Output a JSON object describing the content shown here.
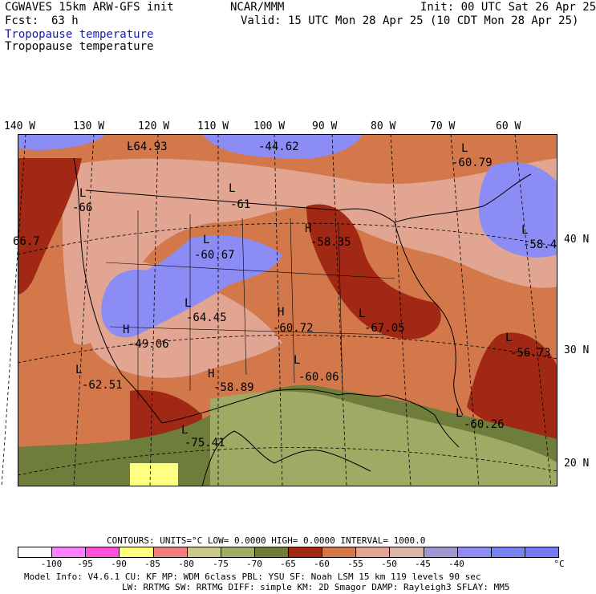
{
  "header": {
    "model": "CGWAVES 15km ARW-GFS init",
    "center": "NCAR/MMM",
    "init": "Init: 00 UTC Sat 26 Apr 25",
    "fcst_label": "Fcst:",
    "fcst_value": "63 h",
    "valid": "Valid: 15 UTC Mon 28 Apr 25 (10 CDT Mon 28 Apr 25)",
    "field_blue": "Tropopause temperature",
    "field_black": "Tropopause temperature"
  },
  "longitudes": [
    "140 W",
    "130 W",
    "120 W",
    "110 W",
    "100 W",
    "90 W",
    "80 W",
    "70 W",
    "60 W"
  ],
  "latitudes": [
    "40 N",
    "30 N",
    "20 N"
  ],
  "map_labels": [
    {
      "letter": "L",
      "value": "-64.93"
    },
    {
      "letter": "",
      "value": "-44.62"
    },
    {
      "letter": "L",
      "value": "-60.79"
    },
    {
      "letter": "L",
      "value": "-66"
    },
    {
      "letter": "L",
      "value": "-61"
    },
    {
      "letter": "",
      "value": "66.7"
    },
    {
      "letter": "L",
      "value": "-60.67"
    },
    {
      "letter": "H",
      "value": "-58.35"
    },
    {
      "letter": "L",
      "value": "-58.4"
    },
    {
      "letter": "L",
      "value": "-64.45"
    },
    {
      "letter": "H",
      "value": "-60.72"
    },
    {
      "letter": "L",
      "value": "-67.05"
    },
    {
      "letter": "H",
      "value": "-49.06"
    },
    {
      "letter": "L",
      "value": "-56.73"
    },
    {
      "letter": "L",
      "value": "-62.51"
    },
    {
      "letter": "H",
      "value": "-58.89"
    },
    {
      "letter": "L",
      "value": "-60.06"
    },
    {
      "letter": "L",
      "value": "-60.26"
    },
    {
      "letter": "L",
      "value": "-75.41"
    }
  ],
  "contours": {
    "text": "CONTOURS:  UNITS=°C  LOW=  0.0000      HIGH=  0.0000      INTERVAL=    1000.0"
  },
  "colorbar": {
    "colors": [
      "#ffffff",
      "#ff80ff",
      "#ff50dc",
      "#ffff80",
      "#f08080",
      "#c8c88c",
      "#a0aa64",
      "#6e7d3c",
      "#a02814",
      "#d2784b",
      "#e1a591",
      "#dcb4aa",
      "#a096d2",
      "#8c8cf5",
      "#7882f0",
      "#7878f0"
    ],
    "ticks": [
      "-100",
      "-95",
      "-90",
      "-85",
      "-80",
      "-75",
      "-70",
      "-65",
      "-60",
      "-55",
      "-50",
      "-45",
      "-40"
    ],
    "unit": "°C"
  },
  "footer": {
    "line1": "Model Info: V4.6.1      CU: KF       MP: WDM 6class   PBL: YSU        SF: Noah LSM      15 km   119 levels   90 sec",
    "line2": "LW: RRTMG    SW: RRTMG   DIFF: simple KM: 2D Smagor DAMP: Rayleigh3  SFLAY: MM5"
  }
}
